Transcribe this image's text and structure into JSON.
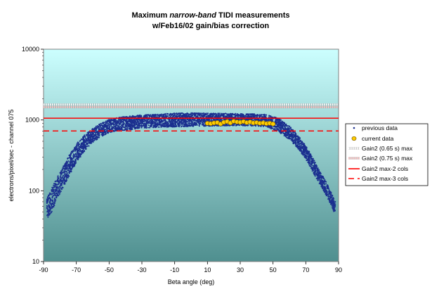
{
  "chart_data": {
    "type": "scatter",
    "title_line1_parts": [
      "Maximum ",
      "narrow-band",
      " TIDI measurements"
    ],
    "title_line2": "w/Feb16/02 gain/bias correction",
    "xlabel": "Beta angle (deg)",
    "ylabel": "electrons/pixel/sec - channel 075",
    "xlim": [
      -90,
      90
    ],
    "ylim": [
      10,
      10000
    ],
    "yscale": "log",
    "x_ticks": [
      "-90",
      "-70",
      "-50",
      "-30",
      "-10",
      "10",
      "30",
      "50",
      "70",
      "90"
    ],
    "y_ticks": [
      "10",
      "100",
      "1000",
      "10000"
    ],
    "legend_position": "right",
    "colors": {
      "background_top": "#ccffff",
      "background_bottom": "#4f8f8f",
      "previous": "#1b2f8f",
      "current_fill": "#ffcc00",
      "current_stroke": "#7a5a00",
      "gain_line": "#ff0000"
    },
    "series": [
      {
        "name": "previous data",
        "marker": "dot",
        "envelope": {
          "x": [
            -88,
            -85,
            -82,
            -78,
            -74,
            -70,
            -65,
            -60,
            -55,
            -50,
            -45,
            -40,
            -30,
            -20,
            -10,
            0,
            10,
            20,
            30,
            40,
            45,
            50,
            55,
            60,
            65,
            70,
            74,
            78,
            82,
            85,
            88
          ],
          "y_low": [
            40,
            50,
            75,
            110,
            170,
            250,
            360,
            480,
            580,
            660,
            700,
            720,
            760,
            790,
            800,
            810,
            820,
            830,
            830,
            820,
            800,
            740,
            640,
            530,
            400,
            280,
            190,
            130,
            90,
            65,
            45
          ],
          "y_high": [
            80,
            110,
            150,
            220,
            330,
            460,
            610,
            760,
            900,
            1020,
            1080,
            1120,
            1180,
            1220,
            1250,
            1260,
            1250,
            1240,
            1230,
            1220,
            1200,
            1150,
            1000,
            820,
            620,
            430,
            300,
            200,
            140,
            100,
            70
          ]
        }
      },
      {
        "name": "current data",
        "marker": "circle",
        "x": [
          10,
          12,
          14,
          16,
          18,
          20,
          22,
          24,
          26,
          28,
          30,
          32,
          34,
          36,
          38,
          40,
          42,
          44,
          46,
          48,
          50
        ],
        "y": [
          900,
          890,
          910,
          920,
          880,
          930,
          950,
          910,
          960,
          940,
          930,
          950,
          920,
          940,
          910,
          920,
          900,
          910,
          890,
          900,
          880
        ]
      },
      {
        "name": "Gain2 (0.65 s) max",
        "style": "dotted-white",
        "y": 1650
      },
      {
        "name": "Gain2 (0.75 s) max",
        "style": "dotted-pink",
        "y": 1520
      },
      {
        "name": "Gain2 max-2 cols",
        "style": "solid-red",
        "y": 1060
      },
      {
        "name": "Gain2 max-3 cols",
        "style": "dashed-red",
        "y": 700
      }
    ]
  }
}
